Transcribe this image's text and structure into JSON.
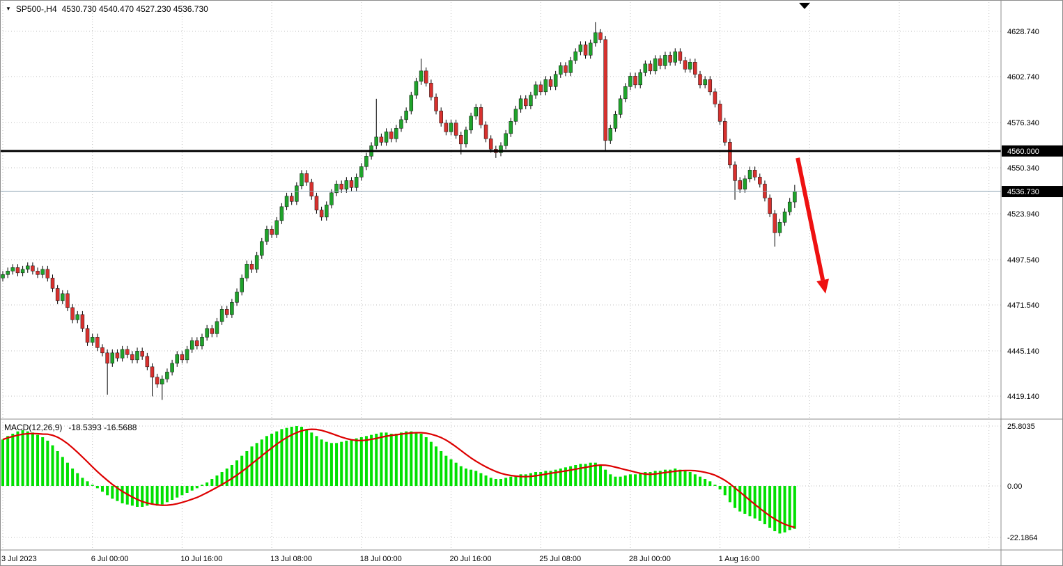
{
  "header": {
    "symbol_timeframe": "SP500-,H4",
    "ohlc_text": "4530.730 4540.470 4527.230 4536.730"
  },
  "icons": {
    "symbol_dropdown": "▼",
    "scroll_marker": "triangle-down"
  },
  "price_axis": {
    "labels": [
      4628.74,
      4602.74,
      4576.34,
      4550.34,
      4523.94,
      4497.54,
      4471.54,
      4445.14,
      4419.14
    ]
  },
  "levels": {
    "hline": {
      "value": 4560.0,
      "label": "4560.000"
    },
    "current": {
      "value": 4536.73,
      "label": "4536.730"
    }
  },
  "time_axis": {
    "labels": [
      {
        "text": "3 Jul 2023",
        "bar": 0
      },
      {
        "text": "6 Jul 00:00",
        "bar": 18
      },
      {
        "text": "10 Jul 16:00",
        "bar": 36
      },
      {
        "text": "13 Jul 08:00",
        "bar": 54
      },
      {
        "text": "18 Jul 00:00",
        "bar": 72
      },
      {
        "text": "20 Jul 16:00",
        "bar": 90
      },
      {
        "text": "25 Jul 08:00",
        "bar": 108
      },
      {
        "text": "28 Jul 00:00",
        "bar": 126
      },
      {
        "text": "1 Aug 16:00",
        "bar": 144
      }
    ],
    "extra_grid_bars": [
      162,
      180,
      198
    ]
  },
  "macd_axis": {
    "labels": [
      {
        "text": "25.8035",
        "value": 25.8035
      },
      {
        "text": "0.00",
        "value": 0
      },
      {
        "text": "-22.1864",
        "value": -22.1864
      }
    ]
  },
  "annotations": {
    "arrow": {
      "color": "#ee1111",
      "from": {
        "bar": 159.6,
        "price": 4556
      },
      "to": {
        "bar": 165.2,
        "price": 4478
      }
    }
  },
  "colors": {
    "bull": "#1fa32b",
    "bear": "#d8312e",
    "wick": "#000000",
    "grid": "#bfbfbf",
    "border": "#8c8c8c",
    "hline": "#000000",
    "current_line": "#8ba0b2",
    "macd_hist": "#00e000",
    "macd_signal": "#dd0000",
    "axis_text": "#000000",
    "tag_bg": "#000000",
    "tag_text": "#ffffff"
  },
  "chart_data": {
    "type": "candlestick",
    "symbol": "SP500-",
    "timeframe": "H4",
    "title": "SP500-,H4",
    "ohlc_current": {
      "open": 4530.73,
      "high": 4540.47,
      "low": 4527.23,
      "close": 4536.73
    },
    "ylim": [
      4405,
      4640
    ],
    "candles": [
      [
        4487,
        4491,
        4485,
        4489
      ],
      [
        4489,
        4493,
        4487,
        4491
      ],
      [
        4491,
        4495,
        4489,
        4493
      ],
      [
        4493,
        4495,
        4488,
        4490
      ],
      [
        4490,
        4494,
        4488,
        4492
      ],
      [
        4492,
        4496,
        4490,
        4494
      ],
      [
        4494,
        4496,
        4489,
        4491
      ],
      [
        4491,
        4493,
        4487,
        4489
      ],
      [
        4489,
        4494,
        4487,
        4492
      ],
      [
        4492,
        4494,
        4485,
        4487
      ],
      [
        4487,
        4489,
        4479,
        4481
      ],
      [
        4481,
        4483,
        4472,
        4474
      ],
      [
        4474,
        4480,
        4472,
        4478
      ],
      [
        4478,
        4480,
        4468,
        4470
      ],
      [
        4470,
        4472,
        4461,
        4463
      ],
      [
        4463,
        4468,
        4461,
        4466
      ],
      [
        4466,
        4468,
        4456,
        4458
      ],
      [
        4458,
        4460,
        4448,
        4450
      ],
      [
        4450,
        4455,
        4448,
        4453
      ],
      [
        4453,
        4455,
        4445,
        4447
      ],
      [
        4447,
        4449,
        4442,
        4444
      ],
      [
        4444,
        4446,
        4420,
        4438
      ],
      [
        4438,
        4446,
        4436,
        4444
      ],
      [
        4444,
        4446,
        4439,
        4441
      ],
      [
        4441,
        4448,
        4439,
        4446
      ],
      [
        4446,
        4448,
        4441,
        4443
      ],
      [
        4443,
        4445,
        4438,
        4440
      ],
      [
        4440,
        4447,
        4438,
        4445
      ],
      [
        4445,
        4447,
        4440,
        4442
      ],
      [
        4442,
        4444,
        4434,
        4436
      ],
      [
        4436,
        4438,
        4419,
        4430
      ],
      [
        4430,
        4432,
        4424,
        4426
      ],
      [
        4426,
        4431,
        4417,
        4429
      ],
      [
        4429,
        4435,
        4427,
        4433
      ],
      [
        4433,
        4440,
        4431,
        4438
      ],
      [
        4438,
        4445,
        4436,
        4443
      ],
      [
        4443,
        4445,
        4438,
        4440
      ],
      [
        4440,
        4448,
        4438,
        4446
      ],
      [
        4446,
        4453,
        4444,
        4451
      ],
      [
        4451,
        4453,
        4446,
        4448
      ],
      [
        4448,
        4455,
        4446,
        4453
      ],
      [
        4453,
        4460,
        4451,
        4458
      ],
      [
        4458,
        4460,
        4453,
        4455
      ],
      [
        4455,
        4464,
        4453,
        4462
      ],
      [
        4462,
        4471,
        4460,
        4469
      ],
      [
        4469,
        4471,
        4464,
        4466
      ],
      [
        4466,
        4475,
        4464,
        4473
      ],
      [
        4473,
        4481,
        4471,
        4479
      ],
      [
        4479,
        4489,
        4477,
        4487
      ],
      [
        4487,
        4497,
        4485,
        4495
      ],
      [
        4495,
        4497,
        4490,
        4492
      ],
      [
        4492,
        4502,
        4490,
        4500
      ],
      [
        4500,
        4510,
        4498,
        4508
      ],
      [
        4508,
        4517,
        4506,
        4515
      ],
      [
        4515,
        4517,
        4510,
        4512
      ],
      [
        4512,
        4522,
        4510,
        4520
      ],
      [
        4520,
        4530,
        4518,
        4528
      ],
      [
        4528,
        4536,
        4526,
        4534
      ],
      [
        4534,
        4536,
        4529,
        4531
      ],
      [
        4531,
        4542,
        4529,
        4540
      ],
      [
        4540,
        4549,
        4538,
        4547
      ],
      [
        4547,
        4549,
        4540,
        4542
      ],
      [
        4542,
        4544,
        4532,
        4534
      ],
      [
        4534,
        4536,
        4524,
        4526
      ],
      [
        4526,
        4528,
        4520,
        4522
      ],
      [
        4522,
        4531,
        4520,
        4529
      ],
      [
        4529,
        4538,
        4527,
        4536
      ],
      [
        4536,
        4543,
        4534,
        4541
      ],
      [
        4541,
        4543,
        4536,
        4538
      ],
      [
        4538,
        4545,
        4536,
        4543
      ],
      [
        4543,
        4545,
        4537,
        4539
      ],
      [
        4539,
        4547,
        4537,
        4545
      ],
      [
        4545,
        4553,
        4543,
        4551
      ],
      [
        4551,
        4559,
        4549,
        4557
      ],
      [
        4557,
        4565,
        4555,
        4563
      ],
      [
        4563,
        4590,
        4561,
        4568
      ],
      [
        4568,
        4570,
        4563,
        4565
      ],
      [
        4565,
        4573,
        4563,
        4571
      ],
      [
        4571,
        4573,
        4565,
        4567
      ],
      [
        4567,
        4575,
        4565,
        4573
      ],
      [
        4573,
        4580,
        4571,
        4578
      ],
      [
        4578,
        4585,
        4576,
        4583
      ],
      [
        4583,
        4594,
        4581,
        4592
      ],
      [
        4592,
        4602,
        4590,
        4600
      ],
      [
        4600,
        4613,
        4598,
        4606
      ],
      [
        4606,
        4608,
        4597,
        4599
      ],
      [
        4599,
        4601,
        4589,
        4591
      ],
      [
        4591,
        4593,
        4581,
        4583
      ],
      [
        4583,
        4585,
        4574,
        4576
      ],
      [
        4576,
        4578,
        4569,
        4571
      ],
      [
        4571,
        4578,
        4569,
        4576
      ],
      [
        4576,
        4578,
        4567,
        4569
      ],
      [
        4569,
        4571,
        4558,
        4564
      ],
      [
        4564,
        4574,
        4562,
        4572
      ],
      [
        4572,
        4582,
        4570,
        4580
      ],
      [
        4580,
        4587,
        4578,
        4585
      ],
      [
        4585,
        4587,
        4573,
        4575
      ],
      [
        4575,
        4577,
        4565,
        4567
      ],
      [
        4567,
        4569,
        4559,
        4561
      ],
      [
        4561,
        4563,
        4556,
        4559
      ],
      [
        4559,
        4565,
        4557,
        4563
      ],
      [
        4563,
        4572,
        4561,
        4570
      ],
      [
        4570,
        4579,
        4568,
        4577
      ],
      [
        4577,
        4586,
        4575,
        4584
      ],
      [
        4584,
        4592,
        4582,
        4590
      ],
      [
        4590,
        4592,
        4584,
        4586
      ],
      [
        4586,
        4594,
        4584,
        4592
      ],
      [
        4592,
        4600,
        4590,
        4598
      ],
      [
        4598,
        4600,
        4592,
        4594
      ],
      [
        4594,
        4603,
        4592,
        4601
      ],
      [
        4601,
        4603,
        4595,
        4597
      ],
      [
        4597,
        4606,
        4595,
        4604
      ],
      [
        4604,
        4611,
        4602,
        4609
      ],
      [
        4609,
        4611,
        4603,
        4605
      ],
      [
        4605,
        4614,
        4603,
        4612
      ],
      [
        4612,
        4619,
        4610,
        4617
      ],
      [
        4617,
        4623,
        4615,
        4621
      ],
      [
        4621,
        4623,
        4613,
        4615
      ],
      [
        4615,
        4624,
        4613,
        4622
      ],
      [
        4622,
        4634,
        4620,
        4628
      ],
      [
        4628,
        4630,
        4622,
        4624
      ],
      [
        4624,
        4626,
        4560,
        4566
      ],
      [
        4566,
        4575,
        4564,
        4573
      ],
      [
        4573,
        4583,
        4571,
        4581
      ],
      [
        4581,
        4592,
        4579,
        4590
      ],
      [
        4590,
        4599,
        4588,
        4597
      ],
      [
        4597,
        4605,
        4595,
        4603
      ],
      [
        4603,
        4605,
        4596,
        4598
      ],
      [
        4598,
        4607,
        4596,
        4605
      ],
      [
        4605,
        4612,
        4603,
        4610
      ],
      [
        4610,
        4612,
        4604,
        4606
      ],
      [
        4606,
        4615,
        4604,
        4613
      ],
      [
        4613,
        4615,
        4607,
        4609
      ],
      [
        4609,
        4617,
        4607,
        4615
      ],
      [
        4615,
        4617,
        4609,
        4611
      ],
      [
        4611,
        4619,
        4609,
        4617
      ],
      [
        4617,
        4619,
        4610,
        4612
      ],
      [
        4612,
        4614,
        4605,
        4607
      ],
      [
        4607,
        4613,
        4605,
        4611
      ],
      [
        4611,
        4613,
        4602,
        4604
      ],
      [
        4604,
        4606,
        4596,
        4598
      ],
      [
        4598,
        4603,
        4596,
        4601
      ],
      [
        4601,
        4603,
        4592,
        4594
      ],
      [
        4594,
        4596,
        4585,
        4587
      ],
      [
        4587,
        4589,
        4575,
        4577
      ],
      [
        4577,
        4579,
        4563,
        4565
      ],
      [
        4565,
        4567,
        4550,
        4552
      ],
      [
        4552,
        4554,
        4532,
        4543
      ],
      [
        4543,
        4545,
        4536,
        4538
      ],
      [
        4538,
        4546,
        4536,
        4544
      ],
      [
        4544,
        4551,
        4542,
        4549
      ],
      [
        4549,
        4551,
        4543,
        4545
      ],
      [
        4545,
        4547,
        4539,
        4541
      ],
      [
        4541,
        4543,
        4531,
        4533
      ],
      [
        4533,
        4535,
        4522,
        4524
      ],
      [
        4524,
        4526,
        4505,
        4513
      ],
      [
        4513,
        4521,
        4511,
        4519
      ],
      [
        4519,
        4527,
        4517,
        4525
      ],
      [
        4525,
        4533,
        4523,
        4530.7
      ],
      [
        4530.7,
        4540.5,
        4527.2,
        4536.7
      ]
    ],
    "macd": {
      "label": "MACD(12,26,9)",
      "macd_value": -18.5393,
      "signal_value": -16.5688,
      "values_text": "-18.5393 -16.5688",
      "signal_period": 9,
      "ylim": [
        -22.1864,
        25.8035
      ],
      "histogram": [
        20,
        21.5,
        22.5,
        23.5,
        24,
        23.5,
        23,
        22,
        21,
        19.5,
        17.5,
        15,
        12.5,
        10,
        7.5,
        5.5,
        3.5,
        2,
        0.5,
        -1,
        -2.5,
        -4,
        -5.5,
        -6.5,
        -7.5,
        -8,
        -8.5,
        -9,
        -9,
        -8.5,
        -8,
        -8.5,
        -8,
        -7,
        -6,
        -5,
        -4,
        -3,
        -2,
        -1,
        0.5,
        1.5,
        3,
        4.5,
        6,
        7.5,
        9,
        11,
        13,
        15,
        17,
        18.5,
        20,
        21.5,
        22.5,
        23.5,
        24.5,
        25,
        25.5,
        25.8,
        25.5,
        24.5,
        23,
        21.5,
        20,
        19,
        18.5,
        18.5,
        19,
        19.5,
        20,
        20.5,
        21,
        21.5,
        22,
        22.5,
        23,
        23,
        22.5,
        22.5,
        23,
        23.5,
        23.5,
        23,
        22.5,
        21,
        19,
        17,
        15,
        13,
        11.5,
        10,
        8.5,
        7.5,
        7,
        6.5,
        5.5,
        4.5,
        3.5,
        3,
        3,
        3.5,
        4,
        4.5,
        5,
        5,
        5.5,
        6,
        6,
        6.5,
        6.5,
        7,
        7.5,
        8,
        8.5,
        9,
        9.5,
        9.5,
        10,
        10,
        9,
        7,
        5,
        4,
        4,
        4.5,
        5,
        5,
        5.5,
        6,
        6,
        6.5,
        6.5,
        7,
        7,
        7.5,
        7,
        6.5,
        6,
        5,
        4,
        3,
        2,
        0.5,
        -1.5,
        -4,
        -7,
        -9.5,
        -11,
        -12,
        -13,
        -14,
        -15,
        -16.5,
        -18,
        -19.5,
        -20.5,
        -20,
        -19,
        -18.5
      ]
    }
  }
}
